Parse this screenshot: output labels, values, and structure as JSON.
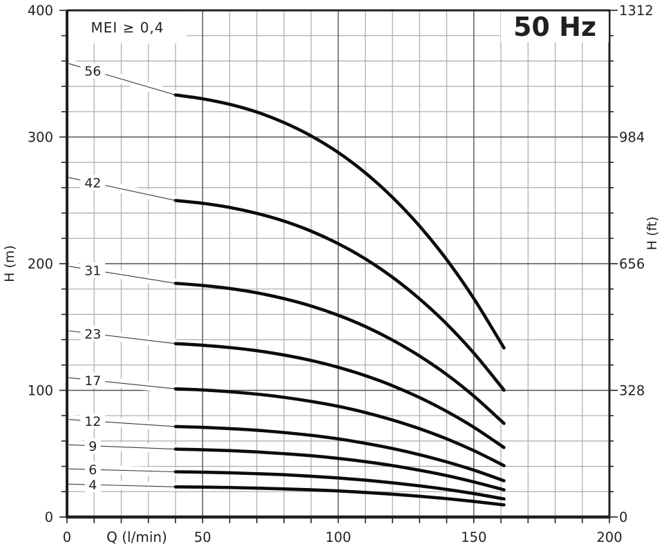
{
  "badges": {
    "mei": "MEI ≥ 0,4",
    "frequency": "50 Hz"
  },
  "axes": {
    "x": {
      "title": "Q (l/min)",
      "min": 0,
      "max": 200,
      "minor_step": 10,
      "major_ticks": [
        0,
        50,
        100,
        150,
        200
      ],
      "tick_labels": [
        "0",
        "50",
        "100",
        "150",
        "200"
      ]
    },
    "y_left": {
      "title": "H (m)",
      "min": 0,
      "max": 400,
      "minor_step": 20,
      "major_ticks": [
        0,
        100,
        200,
        300,
        400
      ],
      "tick_labels": [
        "0",
        "100",
        "200",
        "300",
        "400"
      ]
    },
    "y_right": {
      "title": "H (ft)",
      "major_ticks_m": [
        0,
        100,
        200,
        300,
        400
      ],
      "tick_labels": [
        "0",
        "328",
        "656",
        "984",
        "1312"
      ]
    }
  },
  "chart_data": {
    "type": "line",
    "title": "Pump head curves, 50 Hz, MEI ≥ 0,4",
    "xlabel": "Q (l/min)",
    "ylabel": "H (m)",
    "ylabel_right": "H (ft)",
    "xlim": [
      0,
      200
    ],
    "ylim": [
      0,
      400
    ],
    "grid": "on",
    "legend_position": "inline-labels-left",
    "x": [
      40,
      50,
      60,
      70,
      80,
      90,
      100,
      110,
      120,
      130,
      140,
      150,
      160,
      161
    ],
    "series": [
      {
        "name": "56",
        "label_H": 358,
        "values": [
          333.2,
          330.2,
          325.8,
          319.7,
          311.4,
          300.9,
          287.8,
          271.7,
          252.4,
          229.7,
          203.2,
          172.5,
          137.5,
          133.8
        ]
      },
      {
        "name": "42",
        "label_H": 268,
        "values": [
          249.9,
          247.7,
          244.4,
          239.7,
          233.6,
          225.7,
          215.8,
          203.8,
          189.3,
          172.2,
          152.4,
          129.4,
          103.2,
          100.3
        ]
      },
      {
        "name": "31",
        "label_H": 198,
        "values": [
          184.5,
          182.8,
          180.4,
          177.0,
          172.4,
          166.6,
          159.3,
          150.4,
          139.7,
          127.1,
          112.5,
          95.5,
          76.1,
          74.1
        ]
      },
      {
        "name": "23",
        "label_H": 147,
        "values": [
          136.9,
          135.6,
          133.8,
          131.3,
          127.9,
          123.6,
          118.2,
          111.6,
          103.7,
          94.3,
          83.4,
          70.9,
          56.5,
          55.0
        ]
      },
      {
        "name": "17",
        "label_H": 110,
        "values": [
          101.2,
          100.3,
          98.9,
          97.0,
          94.5,
          91.3,
          87.4,
          82.5,
          76.6,
          69.7,
          61.7,
          52.4,
          41.8,
          40.6
        ]
      },
      {
        "name": "12",
        "label_H": 77,
        "values": [
          71.4,
          70.8,
          69.8,
          68.5,
          66.7,
          64.5,
          61.7,
          58.2,
          54.1,
          49.2,
          43.5,
          37.0,
          29.5,
          28.7
        ]
      },
      {
        "name": "9",
        "label_H": 57,
        "values": [
          53.6,
          53.1,
          52.4,
          51.4,
          50.0,
          48.4,
          46.3,
          43.7,
          40.6,
          36.9,
          32.7,
          27.7,
          22.1,
          21.5
        ]
      },
      {
        "name": "6",
        "label_H": 38,
        "values": [
          35.7,
          35.4,
          34.9,
          34.2,
          33.4,
          32.2,
          30.8,
          29.1,
          27.0,
          24.6,
          21.8,
          18.5,
          14.7,
          14.3
        ]
      },
      {
        "name": "4",
        "label_H": 26,
        "values": [
          23.8,
          23.6,
          23.3,
          22.8,
          22.2,
          21.5,
          20.6,
          19.4,
          18.0,
          16.4,
          14.5,
          12.3,
          9.8,
          9.6
        ]
      }
    ]
  },
  "colors": {
    "text": "#231f20",
    "grid_minor": "#a7a9ac",
    "grid_major": "#515151",
    "axis": "#231f20",
    "curve": "#0b0b0b",
    "leader": "#3a3a3a",
    "background": "#ffffff"
  }
}
